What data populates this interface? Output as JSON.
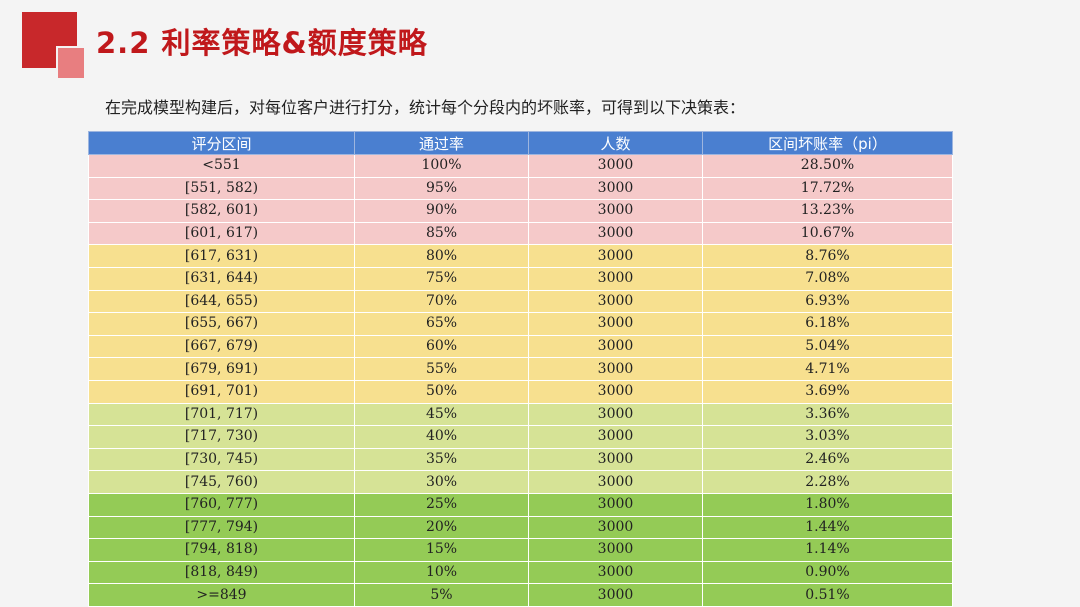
{
  "slide": {
    "title": "2.2 利率策略&额度策略",
    "subtitle": "在完成模型构建后，对每位客户进行打分，统计每个分段内的坏账率，可得到以下决策表："
  },
  "table": {
    "headers": [
      "评分区间",
      "通过率",
      "人数",
      "区间坏账率（pi）"
    ],
    "tier_colors": {
      "red": "#f5c9c9",
      "yellow": "#f7e08f",
      "lightgreen": "#d6e396",
      "green": "#94cb56"
    },
    "rows": [
      {
        "range": "<551",
        "pass_rate": "100%",
        "count": "3000",
        "bad_rate": "28.50%",
        "tier": "red"
      },
      {
        "range": "[551, 582)",
        "pass_rate": "95%",
        "count": "3000",
        "bad_rate": "17.72%",
        "tier": "red"
      },
      {
        "range": "[582, 601)",
        "pass_rate": "90%",
        "count": "3000",
        "bad_rate": "13.23%",
        "tier": "red"
      },
      {
        "range": "[601, 617)",
        "pass_rate": "85%",
        "count": "3000",
        "bad_rate": "10.67%",
        "tier": "red"
      },
      {
        "range": "[617, 631)",
        "pass_rate": "80%",
        "count": "3000",
        "bad_rate": "8.76%",
        "tier": "yellow"
      },
      {
        "range": "[631, 644)",
        "pass_rate": "75%",
        "count": "3000",
        "bad_rate": "7.08%",
        "tier": "yellow"
      },
      {
        "range": "[644, 655)",
        "pass_rate": "70%",
        "count": "3000",
        "bad_rate": "6.93%",
        "tier": "yellow"
      },
      {
        "range": "[655, 667)",
        "pass_rate": "65%",
        "count": "3000",
        "bad_rate": "6.18%",
        "tier": "yellow"
      },
      {
        "range": "[667, 679)",
        "pass_rate": "60%",
        "count": "3000",
        "bad_rate": "5.04%",
        "tier": "yellow"
      },
      {
        "range": "[679, 691)",
        "pass_rate": "55%",
        "count": "3000",
        "bad_rate": "4.71%",
        "tier": "yellow"
      },
      {
        "range": "[691, 701)",
        "pass_rate": "50%",
        "count": "3000",
        "bad_rate": "3.69%",
        "tier": "yellow"
      },
      {
        "range": "[701, 717)",
        "pass_rate": "45%",
        "count": "3000",
        "bad_rate": "3.36%",
        "tier": "lightgreen"
      },
      {
        "range": "[717, 730)",
        "pass_rate": "40%",
        "count": "3000",
        "bad_rate": "3.03%",
        "tier": "lightgreen"
      },
      {
        "range": "[730, 745)",
        "pass_rate": "35%",
        "count": "3000",
        "bad_rate": "2.46%",
        "tier": "lightgreen"
      },
      {
        "range": "[745, 760)",
        "pass_rate": "30%",
        "count": "3000",
        "bad_rate": "2.28%",
        "tier": "lightgreen"
      },
      {
        "range": "[760, 777)",
        "pass_rate": "25%",
        "count": "3000",
        "bad_rate": "1.80%",
        "tier": "green"
      },
      {
        "range": "[777, 794)",
        "pass_rate": "20%",
        "count": "3000",
        "bad_rate": "1.44%",
        "tier": "green"
      },
      {
        "range": "[794, 818)",
        "pass_rate": "15%",
        "count": "3000",
        "bad_rate": "1.14%",
        "tier": "green"
      },
      {
        "range": "[818, 849)",
        "pass_rate": "10%",
        "count": "3000",
        "bad_rate": "0.90%",
        "tier": "green"
      },
      {
        "range": ">=849",
        "pass_rate": "5%",
        "count": "3000",
        "bad_rate": "0.51%",
        "tier": "green"
      }
    ]
  }
}
